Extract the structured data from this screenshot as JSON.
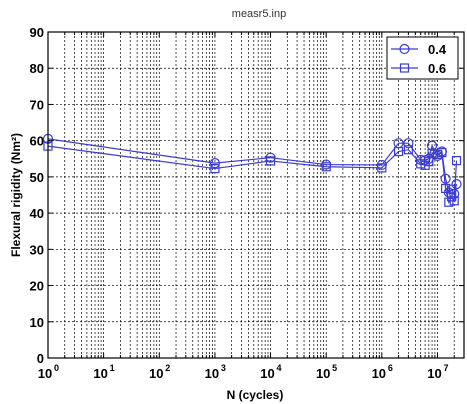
{
  "chart_data": {
    "type": "line",
    "title": "measr5.inp",
    "xlabel": "N (cycles)",
    "ylabel": "Flexural rigidity (Nm²)",
    "xscale": "log",
    "xlim": [
      1,
      30000000
    ],
    "ylim": [
      0,
      90
    ],
    "grid": true,
    "legend_position": "top-right",
    "y_ticks": [
      "0",
      "10",
      "20",
      "30",
      "40",
      "50",
      "60",
      "70",
      "80",
      "90"
    ],
    "x_ticks": [
      {
        "base": "10",
        "exp": "0",
        "value": 1
      },
      {
        "base": "10",
        "exp": "1",
        "value": 10
      },
      {
        "base": "10",
        "exp": "2",
        "value": 100
      },
      {
        "base": "10",
        "exp": "3",
        "value": 1000
      },
      {
        "base": "10",
        "exp": "4",
        "value": 10000
      },
      {
        "base": "10",
        "exp": "5",
        "value": 100000
      },
      {
        "base": "10",
        "exp": "6",
        "value": 1000000
      },
      {
        "base": "10",
        "exp": "7",
        "value": 10000000
      }
    ],
    "series": [
      {
        "name": "0.4",
        "marker": "circle",
        "color": "#3b3bd6",
        "x": [
          1,
          1000,
          10000,
          100000,
          1000000,
          2000000,
          3000000,
          5000000,
          6000000,
          7000000,
          8000000,
          10000000,
          12000000,
          14000000,
          16000000,
          18000000,
          20000000,
          22000000
        ],
        "y": [
          60.5,
          53.8,
          55.3,
          53.4,
          53.3,
          59.3,
          59.3,
          54.7,
          54.6,
          55.0,
          58.6,
          55.8,
          57.0,
          49.5,
          45.7,
          46.5,
          45.3,
          48.0
        ]
      },
      {
        "name": "0.6",
        "marker": "square",
        "color": "#3b3bd6",
        "x": [
          1,
          1000,
          10000,
          100000,
          1000000,
          2000000,
          3000000,
          5000000,
          6000000,
          7000000,
          8000000,
          10000000,
          12000000,
          14000000,
          16000000,
          18000000,
          20000000,
          22000000
        ],
        "y": [
          58.5,
          52.3,
          54.4,
          52.8,
          52.5,
          57.0,
          57.5,
          53.6,
          53.2,
          54.2,
          56.5,
          56.2,
          56.7,
          46.8,
          43.0,
          44.5,
          43.4,
          54.5
        ]
      }
    ]
  }
}
